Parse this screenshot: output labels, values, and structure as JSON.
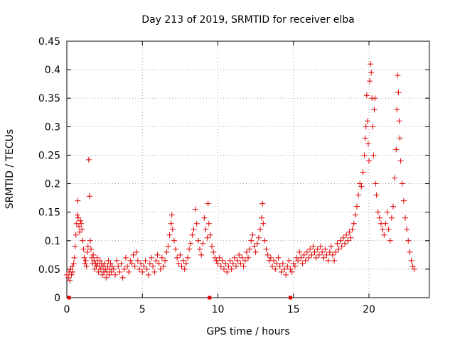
{
  "chart_data": {
    "type": "scatter",
    "title": "Day 213 of 2019, SRMTID for receiver elba",
    "xlabel": "GPS time / hours",
    "ylabel": "SRMTID / TECUs",
    "xlim": [
      0,
      24
    ],
    "ylim": [
      0,
      0.45
    ],
    "xticks": [
      0,
      5,
      10,
      15,
      20
    ],
    "xtick_labels": [
      "0",
      "5",
      "10",
      "15",
      "20"
    ],
    "yticks": [
      0,
      0.05,
      0.1,
      0.15,
      0.2,
      0.25,
      0.3,
      0.35,
      0.4,
      0.45
    ],
    "ytick_labels": [
      "0",
      "0.05",
      "0.1",
      "0.15",
      "0.2",
      "0.25",
      "0.3",
      "0.35",
      "0.4",
      "0.45"
    ],
    "grid": true,
    "marker": "+",
    "color": "#e00000",
    "series": [
      {
        "name": "SRMTID",
        "points": [
          [
            0.0,
            0.04
          ],
          [
            0.1,
            0.035
          ],
          [
            0.15,
            0.045
          ],
          [
            0.2,
            0.03
          ],
          [
            0.25,
            0.05
          ],
          [
            0.3,
            0.04
          ],
          [
            0.35,
            0.055
          ],
          [
            0.4,
            0.045
          ],
          [
            0.45,
            0.06
          ],
          [
            0.5,
            0.07
          ],
          [
            0.55,
            0.09
          ],
          [
            0.6,
            0.11
          ],
          [
            0.65,
            0.13
          ],
          [
            0.7,
            0.145
          ],
          [
            0.72,
            0.17
          ],
          [
            0.75,
            0.14
          ],
          [
            0.8,
            0.125
          ],
          [
            0.85,
            0.115
          ],
          [
            0.9,
            0.135
          ],
          [
            0.95,
            0.13
          ],
          [
            1.0,
            0.12
          ],
          [
            1.05,
            0.1
          ],
          [
            1.1,
            0.085
          ],
          [
            1.15,
            0.07
          ],
          [
            1.2,
            0.06
          ],
          [
            1.25,
            0.065
          ],
          [
            1.3,
            0.055
          ],
          [
            1.35,
            0.08
          ],
          [
            1.4,
            0.09
          ],
          [
            1.45,
            0.242
          ],
          [
            1.5,
            0.178
          ],
          [
            1.55,
            0.1
          ],
          [
            1.6,
            0.085
          ],
          [
            1.65,
            0.07
          ],
          [
            1.7,
            0.06
          ],
          [
            1.75,
            0.075
          ],
          [
            1.8,
            0.065
          ],
          [
            1.85,
            0.05
          ],
          [
            1.9,
            0.06
          ],
          [
            1.95,
            0.055
          ],
          [
            2.0,
            0.07
          ],
          [
            2.05,
            0.06
          ],
          [
            2.1,
            0.045
          ],
          [
            2.15,
            0.055
          ],
          [
            2.2,
            0.065
          ],
          [
            2.25,
            0.05
          ],
          [
            2.3,
            0.06
          ],
          [
            2.35,
            0.04
          ],
          [
            2.4,
            0.055
          ],
          [
            2.45,
            0.045
          ],
          [
            2.5,
            0.06
          ],
          [
            2.55,
            0.05
          ],
          [
            2.6,
            0.035
          ],
          [
            2.65,
            0.045
          ],
          [
            2.7,
            0.055
          ],
          [
            2.75,
            0.065
          ],
          [
            2.8,
            0.04
          ],
          [
            2.85,
            0.05
          ],
          [
            2.9,
            0.06
          ],
          [
            2.95,
            0.045
          ],
          [
            3.0,
            0.055
          ],
          [
            3.1,
            0.05
          ],
          [
            3.2,
            0.04
          ],
          [
            3.3,
            0.065
          ],
          [
            3.4,
            0.055
          ],
          [
            3.5,
            0.045
          ],
          [
            3.6,
            0.06
          ],
          [
            3.7,
            0.035
          ],
          [
            3.8,
            0.05
          ],
          [
            3.9,
            0.07
          ],
          [
            4.0,
            0.055
          ],
          [
            4.1,
            0.045
          ],
          [
            4.2,
            0.065
          ],
          [
            4.3,
            0.06
          ],
          [
            4.4,
            0.075
          ],
          [
            4.5,
            0.055
          ],
          [
            4.6,
            0.08
          ],
          [
            4.7,
            0.065
          ],
          [
            4.8,
            0.05
          ],
          [
            4.9,
            0.06
          ],
          [
            5.0,
            0.045
          ],
          [
            5.1,
            0.055
          ],
          [
            5.2,
            0.065
          ],
          [
            5.3,
            0.05
          ],
          [
            5.4,
            0.04
          ],
          [
            5.5,
            0.06
          ],
          [
            5.6,
            0.07
          ],
          [
            5.7,
            0.055
          ],
          [
            5.8,
            0.045
          ],
          [
            5.9,
            0.065
          ],
          [
            6.0,
            0.075
          ],
          [
            6.1,
            0.06
          ],
          [
            6.2,
            0.05
          ],
          [
            6.3,
            0.07
          ],
          [
            6.4,
            0.055
          ],
          [
            6.5,
            0.065
          ],
          [
            6.6,
            0.08
          ],
          [
            6.7,
            0.09
          ],
          [
            6.8,
            0.11
          ],
          [
            6.9,
            0.13
          ],
          [
            6.95,
            0.145
          ],
          [
            7.0,
            0.12
          ],
          [
            7.1,
            0.1
          ],
          [
            7.2,
            0.085
          ],
          [
            7.3,
            0.07
          ],
          [
            7.4,
            0.06
          ],
          [
            7.5,
            0.075
          ],
          [
            7.6,
            0.055
          ],
          [
            7.7,
            0.065
          ],
          [
            7.8,
            0.05
          ],
          [
            7.9,
            0.06
          ],
          [
            8.0,
            0.07
          ],
          [
            8.1,
            0.085
          ],
          [
            8.2,
            0.095
          ],
          [
            8.3,
            0.11
          ],
          [
            8.4,
            0.12
          ],
          [
            8.5,
            0.155
          ],
          [
            8.6,
            0.13
          ],
          [
            8.7,
            0.1
          ],
          [
            8.8,
            0.085
          ],
          [
            8.9,
            0.075
          ],
          [
            9.0,
            0.095
          ],
          [
            9.1,
            0.14
          ],
          [
            9.2,
            0.12
          ],
          [
            9.3,
            0.105
          ],
          [
            9.35,
            0.165
          ],
          [
            9.4,
            0.13
          ],
          [
            9.5,
            0.11
          ],
          [
            9.6,
            0.09
          ],
          [
            9.7,
            0.08
          ],
          [
            9.8,
            0.07
          ],
          [
            9.9,
            0.065
          ],
          [
            10.0,
            0.06
          ],
          [
            10.1,
            0.07
          ],
          [
            10.2,
            0.055
          ],
          [
            10.3,
            0.065
          ],
          [
            10.4,
            0.05
          ],
          [
            10.5,
            0.06
          ],
          [
            10.6,
            0.045
          ],
          [
            10.7,
            0.055
          ],
          [
            10.8,
            0.065
          ],
          [
            10.9,
            0.05
          ],
          [
            11.0,
            0.06
          ],
          [
            11.1,
            0.07
          ],
          [
            11.2,
            0.055
          ],
          [
            11.3,
            0.065
          ],
          [
            11.4,
            0.075
          ],
          [
            11.5,
            0.06
          ],
          [
            11.6,
            0.07
          ],
          [
            11.7,
            0.055
          ],
          [
            11.8,
            0.065
          ],
          [
            11.9,
            0.08
          ],
          [
            12.0,
            0.07
          ],
          [
            12.1,
            0.085
          ],
          [
            12.2,
            0.1
          ],
          [
            12.3,
            0.11
          ],
          [
            12.4,
            0.09
          ],
          [
            12.5,
            0.08
          ],
          [
            12.6,
            0.095
          ],
          [
            12.7,
            0.105
          ],
          [
            12.8,
            0.12
          ],
          [
            12.9,
            0.14
          ],
          [
            12.95,
            0.165
          ],
          [
            13.0,
            0.13
          ],
          [
            13.1,
            0.1
          ],
          [
            13.2,
            0.085
          ],
          [
            13.3,
            0.075
          ],
          [
            13.4,
            0.065
          ],
          [
            13.5,
            0.07
          ],
          [
            13.6,
            0.055
          ],
          [
            13.7,
            0.065
          ],
          [
            13.8,
            0.05
          ],
          [
            13.9,
            0.06
          ],
          [
            14.0,
            0.07
          ],
          [
            14.1,
            0.055
          ],
          [
            14.2,
            0.045
          ],
          [
            14.3,
            0.06
          ],
          [
            14.4,
            0.05
          ],
          [
            14.5,
            0.04
          ],
          [
            14.6,
            0.055
          ],
          [
            14.7,
            0.065
          ],
          [
            14.8,
            0.05
          ],
          [
            14.9,
            0.045
          ],
          [
            15.0,
            0.06
          ],
          [
            15.1,
            0.055
          ],
          [
            15.2,
            0.07
          ],
          [
            15.3,
            0.065
          ],
          [
            15.4,
            0.08
          ],
          [
            15.5,
            0.07
          ],
          [
            15.6,
            0.06
          ],
          [
            15.7,
            0.075
          ],
          [
            15.8,
            0.065
          ],
          [
            15.9,
            0.08
          ],
          [
            16.0,
            0.07
          ],
          [
            16.1,
            0.085
          ],
          [
            16.2,
            0.075
          ],
          [
            16.3,
            0.09
          ],
          [
            16.4,
            0.08
          ],
          [
            16.5,
            0.07
          ],
          [
            16.6,
            0.085
          ],
          [
            16.7,
            0.075
          ],
          [
            16.8,
            0.09
          ],
          [
            16.9,
            0.08
          ],
          [
            17.0,
            0.07
          ],
          [
            17.1,
            0.085
          ],
          [
            17.2,
            0.075
          ],
          [
            17.3,
            0.065
          ],
          [
            17.4,
            0.08
          ],
          [
            17.5,
            0.09
          ],
          [
            17.6,
            0.075
          ],
          [
            17.7,
            0.065
          ],
          [
            17.8,
            0.08
          ],
          [
            17.9,
            0.095
          ],
          [
            18.0,
            0.085
          ],
          [
            18.1,
            0.1
          ],
          [
            18.2,
            0.09
          ],
          [
            18.3,
            0.105
          ],
          [
            18.4,
            0.095
          ],
          [
            18.5,
            0.11
          ],
          [
            18.6,
            0.1
          ],
          [
            18.7,
            0.115
          ],
          [
            18.8,
            0.105
          ],
          [
            18.9,
            0.12
          ],
          [
            19.0,
            0.13
          ],
          [
            19.1,
            0.145
          ],
          [
            19.2,
            0.16
          ],
          [
            19.3,
            0.18
          ],
          [
            19.4,
            0.2
          ],
          [
            19.5,
            0.195
          ],
          [
            19.6,
            0.22
          ],
          [
            19.7,
            0.25
          ],
          [
            19.75,
            0.28
          ],
          [
            19.8,
            0.3
          ],
          [
            19.85,
            0.355
          ],
          [
            19.9,
            0.31
          ],
          [
            19.95,
            0.27
          ],
          [
            20.0,
            0.24
          ],
          [
            20.05,
            0.38
          ],
          [
            20.1,
            0.41
          ],
          [
            20.15,
            0.395
          ],
          [
            20.2,
            0.35
          ],
          [
            20.25,
            0.3
          ],
          [
            20.3,
            0.25
          ],
          [
            20.35,
            0.33
          ],
          [
            20.4,
            0.35
          ],
          [
            20.45,
            0.2
          ],
          [
            20.5,
            0.18
          ],
          [
            20.6,
            0.15
          ],
          [
            20.7,
            0.14
          ],
          [
            20.8,
            0.13
          ],
          [
            20.9,
            0.12
          ],
          [
            21.0,
            0.11
          ],
          [
            21.1,
            0.13
          ],
          [
            21.2,
            0.15
          ],
          [
            21.3,
            0.12
          ],
          [
            21.4,
            0.1
          ],
          [
            21.5,
            0.14
          ],
          [
            21.6,
            0.16
          ],
          [
            21.7,
            0.21
          ],
          [
            21.8,
            0.26
          ],
          [
            21.85,
            0.33
          ],
          [
            21.9,
            0.39
          ],
          [
            21.95,
            0.36
          ],
          [
            22.0,
            0.31
          ],
          [
            22.05,
            0.28
          ],
          [
            22.1,
            0.24
          ],
          [
            22.2,
            0.2
          ],
          [
            22.3,
            0.17
          ],
          [
            22.4,
            0.14
          ],
          [
            22.5,
            0.12
          ],
          [
            22.6,
            0.1
          ],
          [
            22.7,
            0.08
          ],
          [
            22.8,
            0.065
          ],
          [
            22.9,
            0.055
          ],
          [
            23.0,
            0.05
          ]
        ]
      }
    ],
    "markers_on_axis": [
      0.15,
      9.45,
      14.8
    ]
  }
}
